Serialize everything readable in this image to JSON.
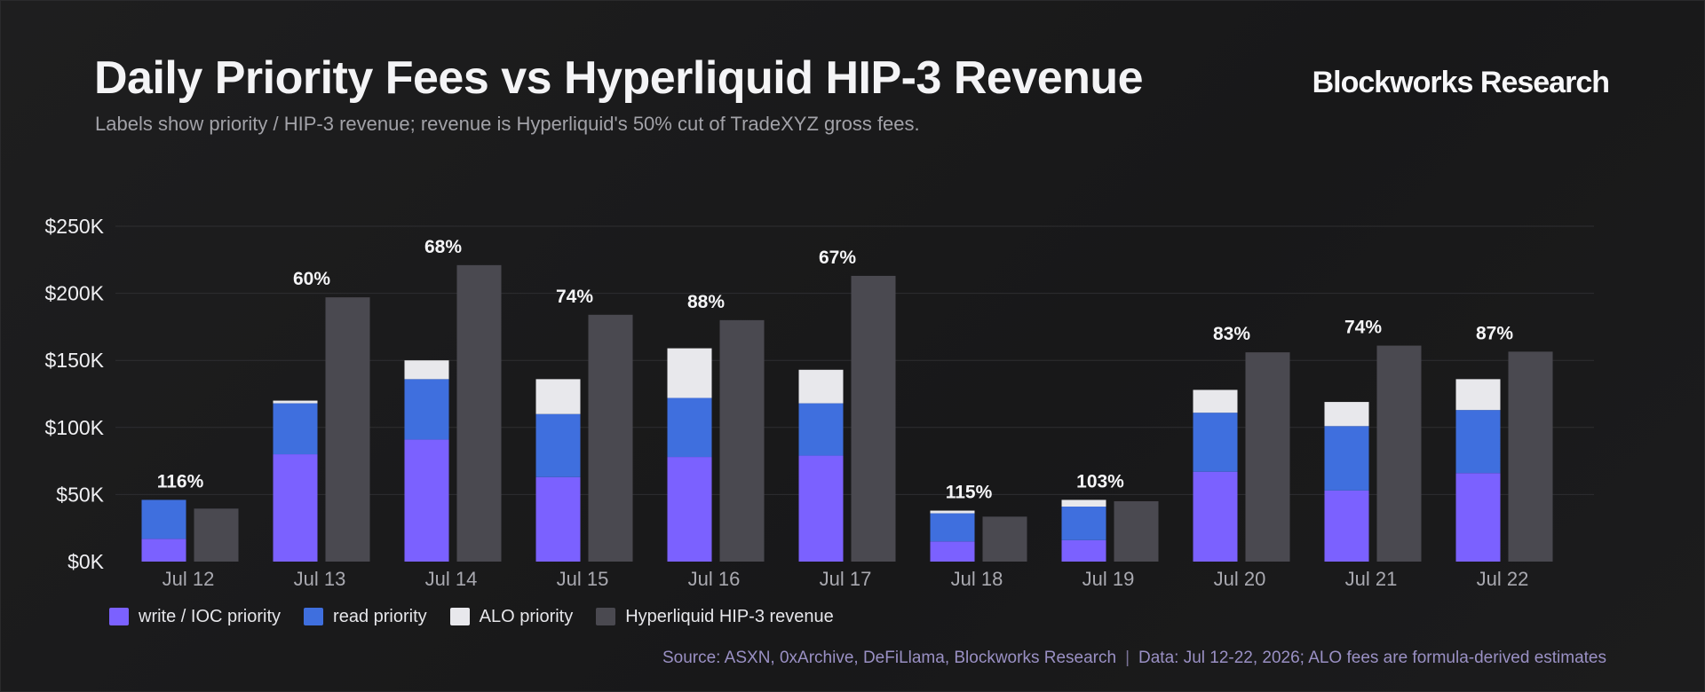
{
  "header": {
    "title": "Daily Priority Fees vs Hyperliquid HIP-3 Revenue",
    "subtitle": "Labels show priority / HIP-3 revenue; revenue is Hyperliquid's 50% cut of TradeXYZ gross fees.",
    "brand": "Blockworks Research"
  },
  "footer": {
    "source": "Source: ASXN, 0xArchive, DeFiLlama, Blockworks Research",
    "separator": "|",
    "note": "Data: Jul 12-22, 2026; ALO fees are formula-derived estimates"
  },
  "colors": {
    "write_ioc": "#7b61ff",
    "read": "#3f6fde",
    "alo": "#e8e8ec",
    "revenue": "#4a4950",
    "grid": "#2e2e31",
    "axis_text": "#f0f0f3",
    "tick_text": "#a9a9b0"
  },
  "chart_data": {
    "type": "bar",
    "categories": [
      "Jul 12",
      "Jul 13",
      "Jul 14",
      "Jul 15",
      "Jul 16",
      "Jul 17",
      "Jul 18",
      "Jul 19",
      "Jul 20",
      "Jul 21",
      "Jul 22"
    ],
    "ylim": [
      0,
      250000
    ],
    "yticks": [
      0,
      50000,
      100000,
      150000,
      200000,
      250000
    ],
    "ytick_labels": [
      "$0K",
      "$50K",
      "$100K",
      "$150K",
      "$200K",
      "$250K"
    ],
    "stacked_series": [
      {
        "name": "write / IOC priority",
        "color_key": "write_ioc",
        "values": [
          17000,
          80000,
          91000,
          63000,
          78000,
          79000,
          15000,
          16000,
          67000,
          53000,
          66000
        ]
      },
      {
        "name": "read priority",
        "color_key": "read",
        "values": [
          29000,
          38000,
          45000,
          47000,
          44000,
          39000,
          21000,
          25000,
          44000,
          48000,
          47000
        ]
      },
      {
        "name": "ALO priority",
        "color_key": "alo",
        "values": [
          0,
          2000,
          14000,
          26000,
          37000,
          25000,
          2000,
          5000,
          17000,
          18000,
          23000
        ]
      }
    ],
    "revenue_series": {
      "name": "Hyperliquid HIP-3 revenue",
      "color_key": "revenue",
      "values": [
        39500,
        197000,
        221000,
        184000,
        180000,
        213000,
        33500,
        45000,
        156000,
        161000,
        156500
      ]
    },
    "ratio_labels": [
      "116%",
      "60%",
      "68%",
      "74%",
      "88%",
      "67%",
      "115%",
      "103%",
      "83%",
      "74%",
      "87%"
    ],
    "legend": [
      {
        "label": "write / IOC priority",
        "color_key": "write_ioc"
      },
      {
        "label": "read priority",
        "color_key": "read"
      },
      {
        "label": "ALO priority",
        "color_key": "alo"
      },
      {
        "label": "Hyperliquid HIP-3 revenue",
        "color_key": "revenue"
      }
    ],
    "grid": true,
    "legend_position": "bottom-left"
  }
}
